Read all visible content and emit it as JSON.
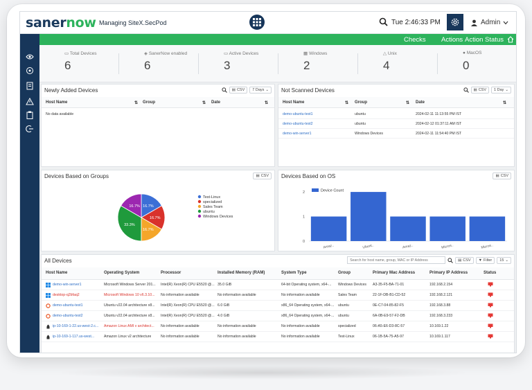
{
  "app": {
    "logo_a": "saner",
    "logo_b": "now",
    "managing": "Managing SiteX.SecPod",
    "time": "Tue 2:46:33 PM",
    "user": "Admin"
  },
  "greenbar": {
    "checks": "Checks",
    "actions": "Actions",
    "action_status": "Action Status"
  },
  "stats": [
    {
      "label": "Total Devices",
      "value": "6"
    },
    {
      "label": "SanerNow enabled",
      "value": "6"
    },
    {
      "label": "Active Devices",
      "value": "3"
    },
    {
      "label": "Windows",
      "value": "2"
    },
    {
      "label": "Unix",
      "value": "4"
    },
    {
      "label": "MacOS",
      "value": "0"
    }
  ],
  "newly_added": {
    "title": "Newly Added Devices",
    "csv": "CSV",
    "range": "7 Days",
    "cols": [
      "Host Name",
      "Group",
      "Date"
    ],
    "empty": "No data available"
  },
  "not_scanned": {
    "title": "Not Scanned Devices",
    "csv": "CSV",
    "range": "1 Day",
    "cols": [
      "Host Name",
      "Group",
      "Date"
    ],
    "rows": [
      [
        "demo-ubuntu-test1",
        "ubuntu",
        "2024-02-11 11:13:55 PM IST"
      ],
      [
        "demo-ubuntu-test2",
        "ubuntu",
        "2024-02-12 01:37:11 AM IST"
      ],
      [
        "demo-win-server1",
        "Windows Devices",
        "2024-02-11 11:54:40 PM IST"
      ]
    ]
  },
  "groups_panel": {
    "title": "Devices Based on Groups",
    "csv": "CSV"
  },
  "os_panel": {
    "title": "Devices Based on OS",
    "csv": "CSV"
  },
  "chart_data": [
    {
      "type": "pie",
      "legend_position": "right",
      "slices": [
        {
          "label": "Test-Linux",
          "value": 16.7,
          "color": "#3c6fd6"
        },
        {
          "label": "specialized",
          "value": 16.7,
          "color": "#d9322b"
        },
        {
          "label": "Sales Team",
          "value": 16.7,
          "color": "#f4a62a"
        },
        {
          "label": "ubuntu",
          "value": 33.3,
          "color": "#1f9a3c"
        },
        {
          "label": "Windows Devices",
          "value": 16.7,
          "color": "#9c27b0"
        }
      ]
    },
    {
      "type": "bar",
      "categories": [
        "Amaz..",
        "Ubunt..",
        "Amaz..",
        "Micros..",
        "Micros.."
      ],
      "series": [
        {
          "name": "Device Count",
          "values": [
            1,
            2,
            1,
            1,
            1
          ]
        }
      ],
      "ylim": [
        0,
        2.2
      ],
      "yticks": [
        0,
        1,
        2
      ],
      "color": "#3466d1",
      "grid": false
    }
  ],
  "all_devices": {
    "title": "All Devices",
    "search_placeholder": "Search for host name, group, MAC or IP Address",
    "csv": "CSV",
    "filter": "Filter",
    "page_size": "15",
    "cols": [
      "Host Name",
      "Operating System",
      "Processor",
      "Installed Memory (RAM)",
      "System Type",
      "Group",
      "Primary Mac Address",
      "Primary IP Address",
      "Status"
    ],
    "rows": [
      {
        "os_icon": "windows-icon",
        "host": "demo-win-server1",
        "os": "Microsoft Windows Server 201...",
        "cpu": "Intel(R) Xeon(R) CPU E5520 @...",
        "ram": "35.0 GiB",
        "type": "64-bit Operating system, x64-...",
        "group": "Windows Devices",
        "mac": "A3-35-F5-BA-71-01",
        "ip": "192.168.2.154",
        "host_red": false
      },
      {
        "os_icon": "windows-icon",
        "host": "desktop-q2bfaq2",
        "os": "Microsoft Windows 10 v6.3.10...",
        "cpu": "No information available",
        "ram": "No information available",
        "type": "No information available",
        "group": "Sales Team",
        "mac": "22-1F-DB-B1-CD-52",
        "ip": "192.168.2.121",
        "host_red": true
      },
      {
        "os_icon": "ubuntu-icon",
        "host": "demo-ubuntu-test1",
        "os": "Ubuntu v22.04 architecture x8...",
        "cpu": "Intel(R) Xeon(R) CPU E5520 @...",
        "ram": "6.0 GiB",
        "type": "x86_64 Operating system, x64-...",
        "group": "ubuntu",
        "mac": "0E-C7-04-85-82-F5",
        "ip": "192.168.3.88",
        "host_red": false
      },
      {
        "os_icon": "ubuntu-icon",
        "host": "demo-ubuntu-test2",
        "os": "Ubuntu v22.04 architecture x8...",
        "cpu": "Intel(R) Xeon(R) CPU E5520 @...",
        "ram": "4.0 GiB",
        "type": "x86_64 Operating system, x64-...",
        "group": "ubuntu",
        "mac": "6A-0B-E9-57-F2-DB",
        "ip": "192.168.3.233",
        "host_red": false
      },
      {
        "os_icon": "linux-icon",
        "host": "ip-10-169-1-22.us-west-2.c...",
        "os": "Amazon Linux AMI v architect...",
        "cpu": "No information available",
        "ram": "No information available",
        "type": "No information available",
        "group": "specialized",
        "mac": "06-A5-E6-D3-8C-57",
        "ip": "10.169.1.22",
        "host_red": false
      },
      {
        "os_icon": "linux-icon",
        "host": "ip-10-169-1-117.us-west...",
        "os": "Amazon Linux v2 architecture",
        "cpu": "No information available",
        "ram": "No information available",
        "type": "No information available",
        "group": "Test-Linux",
        "mac": "06-1B-5A-75-A5-97",
        "ip": "10.169.1.117",
        "host_red": false
      }
    ]
  }
}
